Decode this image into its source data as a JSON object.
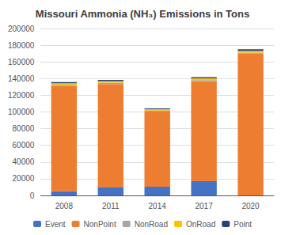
{
  "chart_data": {
    "type": "bar",
    "title": "Missouri Ammonia (NH₃) Emissions in Tons",
    "categories": [
      "2008",
      "2011",
      "2014",
      "2017",
      "2020"
    ],
    "series": [
      {
        "name": "Event",
        "color": "#4472c4",
        "values": [
          5000,
          9500,
          10500,
          17000,
          0
        ]
      },
      {
        "name": "NonPoint",
        "color": "#ed7d31",
        "values": [
          126000,
          124000,
          90000,
          120000,
          170000
        ]
      },
      {
        "name": "NonRoad",
        "color": "#a5a5a5",
        "values": [
          1500,
          1500,
          1200,
          1200,
          1200
        ]
      },
      {
        "name": "OnRoad",
        "color": "#ffc000",
        "values": [
          1800,
          2000,
          1500,
          2000,
          2000
        ]
      },
      {
        "name": "Point",
        "color": "#264478",
        "values": [
          1500,
          1500,
          1000,
          1500,
          2000
        ]
      }
    ],
    "ylim": [
      0,
      200000
    ],
    "yticks": [
      0,
      20000,
      40000,
      60000,
      80000,
      100000,
      120000,
      140000,
      160000,
      180000,
      200000
    ],
    "stacked": true,
    "grid": true,
    "legend": "bottom"
  }
}
